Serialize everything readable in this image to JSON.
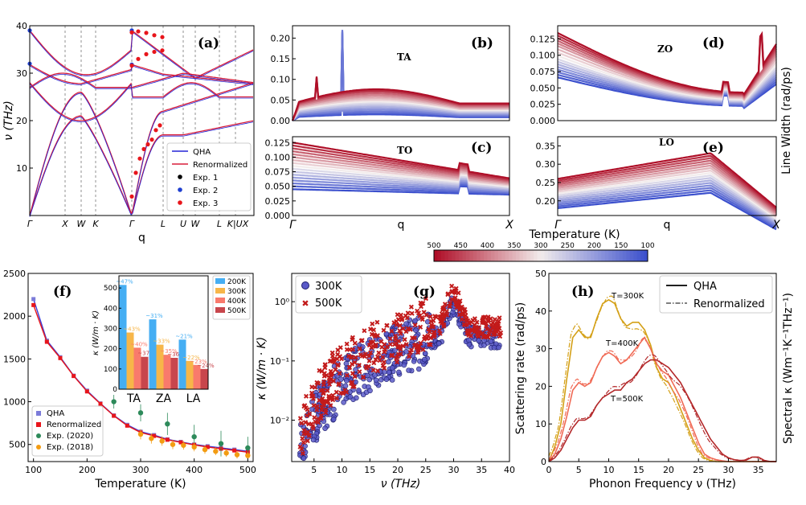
{
  "chart_data": [
    {
      "panel": "(a)",
      "type": "line",
      "xlabel": "q",
      "ylabel": "ν (THz)",
      "x_ticks": [
        "Γ",
        "X",
        "W",
        "K",
        "Γ",
        "L",
        "U",
        "W",
        "L",
        "K|UX"
      ],
      "ylim": [
        0,
        40
      ],
      "yticks": [
        "10",
        "20",
        "30",
        "40"
      ],
      "legend": [
        "QHA",
        "Renormalized",
        "Exp. 1",
        "Exp. 2",
        "Exp. 3"
      ],
      "colors": {
        "qha": "#2424d6",
        "ren": "#d81e3a",
        "exp1": "#000000",
        "exp2": "#1f3fd0",
        "exp3": "#e8151b"
      }
    },
    {
      "panel": "(b)",
      "mode": "TA",
      "type": "line",
      "yticks": [
        "0.00",
        "0.05",
        "0.10",
        "0.15",
        "0.20"
      ],
      "ylim": [
        0,
        0.23
      ],
      "temps_K": [
        100,
        125,
        150,
        175,
        200,
        225,
        250,
        275,
        300,
        325,
        350,
        375,
        400,
        425,
        450,
        475,
        500
      ],
      "peak_values": [
        0.015,
        0.018,
        0.022,
        0.026,
        0.03,
        0.034,
        0.038,
        0.042,
        0.046,
        0.05,
        0.054,
        0.058,
        0.062,
        0.066,
        0.07,
        0.073,
        0.076
      ]
    },
    {
      "panel": "(c)",
      "mode": "TO",
      "type": "line",
      "yticks": [
        "0.000",
        "0.025",
        "0.050",
        "0.075",
        "0.100",
        "0.125"
      ],
      "ylim": [
        0,
        0.135
      ],
      "x_ticks": [
        "Γ",
        "q",
        "X"
      ],
      "start_values": [
        0.045,
        0.05,
        0.055,
        0.06,
        0.065,
        0.07,
        0.075,
        0.08,
        0.085,
        0.09,
        0.095,
        0.1,
        0.105,
        0.11,
        0.115,
        0.12,
        0.125
      ]
    },
    {
      "panel": "(d)",
      "mode": "ZO",
      "type": "line",
      "yticks": [
        "0.000",
        "0.025",
        "0.050",
        "0.075",
        "0.100",
        "0.125"
      ],
      "ylim": [
        0,
        0.145
      ],
      "start_values": [
        0.062,
        0.066,
        0.07,
        0.074,
        0.078,
        0.082,
        0.086,
        0.09,
        0.095,
        0.1,
        0.105,
        0.11,
        0.114,
        0.118,
        0.122,
        0.126,
        0.13
      ]
    },
    {
      "panel": "(e)",
      "mode": "LO",
      "type": "line",
      "yticks": [
        "0.20",
        "0.25",
        "0.30",
        "0.35"
      ],
      "ylim": [
        0.16,
        0.375
      ],
      "x_ticks": [
        "Γ",
        "q",
        "X"
      ],
      "start_values": [
        0.18,
        0.185,
        0.19,
        0.195,
        0.2,
        0.205,
        0.21,
        0.215,
        0.22,
        0.225,
        0.23,
        0.235,
        0.24,
        0.245,
        0.25,
        0.255,
        0.26
      ]
    },
    {
      "panel": "(b)-(e) shared",
      "ylabel": "Line Width (rad/ps)",
      "colorbar": {
        "label": "Temperature (K)",
        "ticks": [
          "500",
          "450",
          "400",
          "350",
          "300",
          "250",
          "200",
          "150",
          "100"
        ]
      }
    },
    {
      "panel": "(f)",
      "type": "line",
      "xlabel": "Temperature (K)",
      "ylabel": "κ (W/m · K)",
      "xlim": [
        90,
        510
      ],
      "ylim": [
        300,
        2500
      ],
      "xticks": [
        "100",
        "200",
        "300",
        "400",
        "500"
      ],
      "yticks": [
        "500",
        "1000",
        "1500",
        "2000",
        "2500"
      ],
      "series": [
        {
          "name": "QHA",
          "x": [
            100,
            125,
            150,
            175,
            200,
            225,
            250,
            275,
            300,
            325,
            350,
            375,
            400,
            425,
            450,
            475,
            500
          ],
          "values": [
            2200,
            1715,
            1520,
            1305,
            1130,
            980,
            840,
            730,
            650,
            610,
            560,
            530,
            500,
            480,
            460,
            440,
            420
          ]
        },
        {
          "name": "Renormalized",
          "x": [
            100,
            125,
            150,
            175,
            200,
            225,
            250,
            275,
            300,
            325,
            350,
            375,
            400,
            425,
            450,
            475,
            500
          ],
          "values": [
            2130,
            1700,
            1510,
            1300,
            1120,
            975,
            835,
            720,
            640,
            600,
            555,
            525,
            495,
            470,
            450,
            430,
            410
          ]
        },
        {
          "name": "Exp. (2020)",
          "x": [
            250,
            300,
            350,
            400,
            450,
            500
          ],
          "values": [
            1000,
            870,
            740,
            590,
            510,
            460
          ],
          "err": [
            80,
            100,
            130,
            140,
            150,
            130
          ]
        },
        {
          "name": "Exp. (2018)",
          "x": [
            300,
            320,
            340,
            360,
            380,
            400,
            420,
            440,
            460,
            480,
            500
          ],
          "values": [
            620,
            570,
            540,
            500,
            490,
            470,
            440,
            420,
            400,
            380,
            370
          ],
          "err": [
            60,
            60,
            55,
            55,
            50,
            50,
            50,
            45,
            45,
            45,
            40
          ]
        }
      ],
      "inset": {
        "type": "bar",
        "ylabel": "κ (W/m · K)",
        "categories": [
          "TA",
          "ZA",
          "LA"
        ],
        "yticks": [
          "0",
          "100",
          "200",
          "300",
          "400",
          "500"
        ],
        "ylim": [
          0,
          560
        ],
        "series": [
          {
            "name": "200K",
            "values": [
              515,
              345,
              245
            ],
            "labels": [
              "~47%",
              "~31%",
              "~21%"
            ]
          },
          {
            "name": "300K",
            "values": [
              280,
              220,
              140
            ],
            "labels": [
              "~43%",
              "~33%",
              "~22%"
            ]
          },
          {
            "name": "400K",
            "values": [
              205,
              170,
              120
            ],
            "labels": [
              "~40%",
              "~35%",
              "~23%"
            ]
          },
          {
            "name": "500K",
            "values": [
              160,
              155,
              100
            ],
            "labels": [
              "~37%",
              "~36%",
              "~24%"
            ]
          }
        ],
        "colors": [
          "#45aef3",
          "#f7b649",
          "#f97a6c",
          "#c8464c"
        ]
      }
    },
    {
      "panel": "(g)",
      "type": "scatter",
      "xlabel": "ν (THz)",
      "ylabel": "Scattering rate (rad/ps)",
      "yscale": "log",
      "ylim": [
        0.002,
        3
      ],
      "xlim": [
        1,
        40
      ],
      "xticks": [
        "5",
        "10",
        "15",
        "20",
        "25",
        "30",
        "35",
        "40"
      ],
      "yticks": [
        "10⁻²",
        "10⁻¹",
        "10⁰"
      ],
      "series": [
        {
          "name": "300K"
        },
        {
          "name": "500K"
        }
      ]
    },
    {
      "panel": "(h)",
      "type": "line",
      "xlabel": "Phonon Frequency ν (THz)",
      "ylabel": "Spectral κ (Wm⁻¹K⁻¹THz⁻¹)",
      "xlim": [
        0,
        38
      ],
      "ylim": [
        0,
        50
      ],
      "xticks": [
        "0",
        "5",
        "10",
        "15",
        "20",
        "25",
        "30",
        "35"
      ],
      "yticks": [
        "0",
        "10",
        "20",
        "30",
        "40",
        "50"
      ],
      "legend": [
        "QHA",
        "Renormalized"
      ],
      "annotations": [
        "T=300K",
        "T=400K",
        "T=500K"
      ],
      "series": [
        {
          "name": "T=300K",
          "x": [
            0,
            1,
            2,
            3,
            4,
            5,
            6,
            7,
            8,
            9,
            10,
            11,
            12,
            13,
            14,
            15,
            16,
            17,
            18,
            19,
            20,
            21,
            22,
            23,
            24,
            25,
            26,
            27,
            28
          ],
          "values": [
            0,
            4,
            10,
            22,
            33,
            35,
            33,
            33,
            38,
            42,
            43,
            42,
            38,
            36,
            37,
            37,
            35,
            31,
            25,
            22,
            21,
            18,
            14,
            10,
            6,
            3,
            1,
            0.3,
            0
          ]
        },
        {
          "name": "T=400K",
          "x": [
            0,
            1,
            2,
            3,
            4,
            5,
            6,
            7,
            8,
            9,
            10,
            11,
            12,
            13,
            14,
            15,
            16,
            17,
            18,
            19,
            20,
            21,
            22,
            23,
            24,
            25,
            26,
            27,
            28,
            29,
            30,
            31
          ],
          "values": [
            0,
            2,
            6,
            12,
            19,
            21,
            20,
            21,
            25,
            28,
            29,
            28,
            26,
            27,
            29,
            31,
            33,
            30,
            26,
            24,
            23,
            20,
            17,
            13,
            9,
            5,
            2,
            1,
            0.5,
            0.2,
            0,
            0
          ]
        },
        {
          "name": "T=500K",
          "x": [
            0,
            1,
            2,
            3,
            4,
            5,
            6,
            7,
            8,
            9,
            10,
            11,
            12,
            13,
            14,
            15,
            16,
            17,
            18,
            19,
            20,
            21,
            22,
            23,
            24,
            25,
            26,
            27,
            28,
            29,
            30,
            31,
            32,
            33,
            34,
            35,
            36,
            37
          ],
          "values": [
            0,
            1,
            3,
            6,
            9,
            11,
            11,
            12,
            15,
            17,
            18,
            19,
            19,
            21,
            22,
            24,
            26,
            27,
            27,
            26,
            25,
            23,
            21,
            18,
            15,
            12,
            9,
            6,
            4,
            2,
            1,
            0.5,
            0.3,
            0.4,
            1.2,
            1.2,
            0.3,
            0
          ]
        }
      ],
      "colors": [
        "#d4a017",
        "#f06a55",
        "#b3282a"
      ]
    }
  ]
}
